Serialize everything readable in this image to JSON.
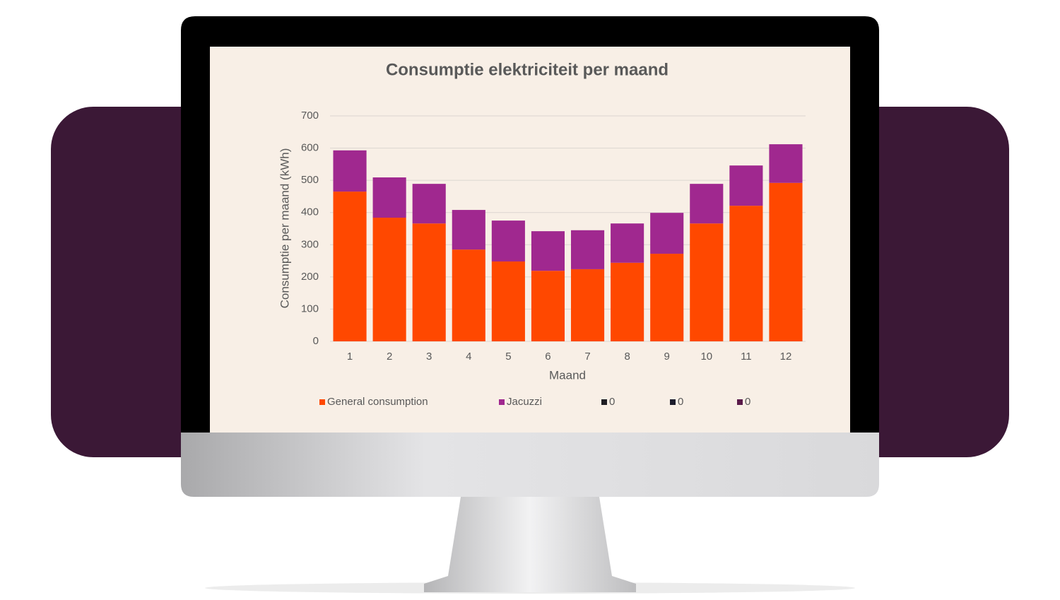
{
  "chart_data": {
    "type": "stacked-bar",
    "title": "Consumptie elektriciteit per maand",
    "x_label": "Maand",
    "y_label": "Consumptie per maand (kWh)",
    "categories": [
      "1",
      "2",
      "3",
      "4",
      "5",
      "6",
      "7",
      "8",
      "9",
      "10",
      "11",
      "12"
    ],
    "series": [
      {
        "name": "General consumption",
        "color": "#ff4800",
        "values": [
          465,
          384,
          366,
          285,
          248,
          219,
          224,
          244,
          272,
          366,
          421,
          492
        ]
      },
      {
        "name": "Jacuzzi",
        "color": "#a0288f",
        "values": [
          128,
          125,
          123,
          123,
          127,
          123,
          121,
          122,
          127,
          123,
          125,
          120
        ]
      },
      {
        "name": "0",
        "color": "#1e1e24",
        "values": [
          0,
          0,
          0,
          0,
          0,
          0,
          0,
          0,
          0,
          0,
          0,
          0
        ]
      },
      {
        "name": "0",
        "color": "#1c1c2c",
        "values": [
          0,
          0,
          0,
          0,
          0,
          0,
          0,
          0,
          0,
          0,
          0,
          0
        ]
      },
      {
        "name": "0",
        "color": "#5a1a4a",
        "values": [
          0,
          0,
          0,
          0,
          0,
          0,
          0,
          0,
          0,
          0,
          0,
          0
        ]
      }
    ],
    "ylim": [
      0,
      700
    ],
    "yticks": [
      0,
      100,
      200,
      300,
      400,
      500,
      600,
      700
    ],
    "grid": true,
    "legend": "bottom"
  }
}
